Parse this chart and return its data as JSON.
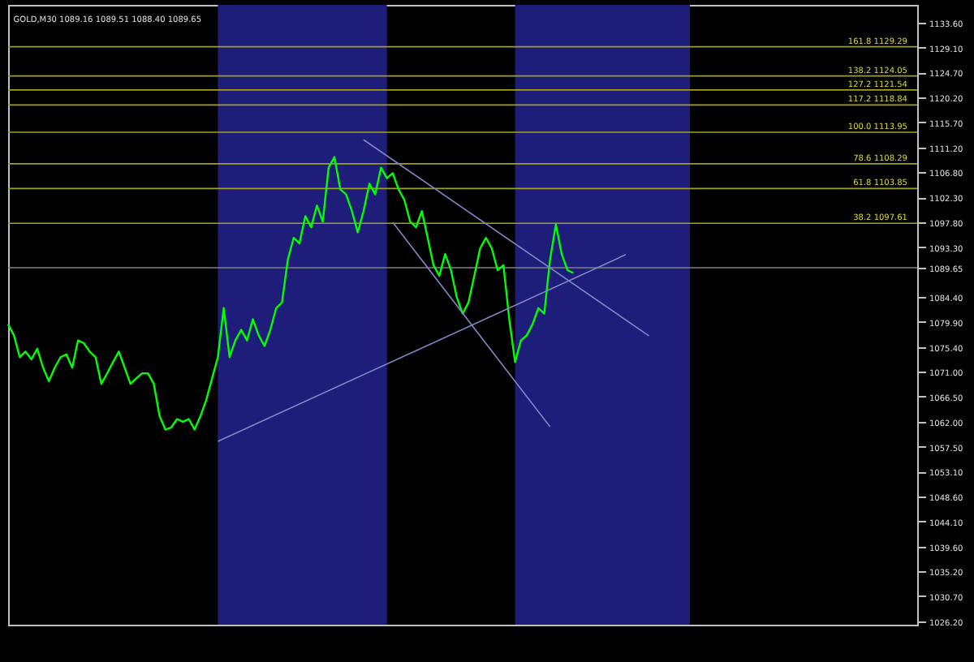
{
  "chart_data": {
    "type": "line",
    "title": "GOLD,M30  1089.16 1089.51 1088.40 1089.65",
    "categories": [
      null,
      null,
      null,
      null,
      null,
      null,
      null,
      null,
      null,
      null,
      null,
      null,
      null,
      null,
      null,
      null,
      null,
      null,
      null,
      null,
      null,
      null,
      null,
      null,
      null,
      null,
      null,
      null,
      null,
      null,
      null,
      null,
      null,
      null,
      null,
      null,
      null,
      null,
      null,
      null,
      null,
      null,
      null,
      null,
      null,
      null,
      null,
      null,
      null,
      null,
      null,
      null,
      null,
      null,
      null,
      null,
      null,
      null,
      null,
      null,
      null,
      null,
      null,
      null,
      null,
      null,
      null,
      null,
      null,
      null,
      null,
      null,
      null,
      null,
      null,
      null,
      null,
      null,
      null,
      null,
      null,
      null,
      null,
      null,
      null,
      null,
      null,
      null,
      null,
      null,
      null,
      null,
      null,
      null,
      null,
      null,
      null,
      null,
      null,
      null,
      null,
      null,
      null,
      null,
      null,
      null,
      null,
      null,
      null,
      null,
      null,
      null,
      null,
      null,
      null,
      null,
      null,
      null,
      null,
      null,
      null,
      null,
      null,
      null,
      null,
      null,
      null,
      null,
      null,
      null,
      null,
      null,
      null,
      null,
      null,
      null,
      null,
      null,
      null,
      null,
      null,
      null,
      null,
      null,
      null,
      null,
      null,
      null,
      null,
      null,
      null,
      null,
      null,
      null,
      null,
      null,
      null
    ],
    "ylim": [
      1025.6,
      1136.8
    ],
    "yticks": [
      {
        "value": 1133.6,
        "label": "1133.60"
      },
      {
        "value": 1129.1,
        "label": "1129.10"
      },
      {
        "value": 1124.7,
        "label": "1124.70"
      },
      {
        "value": 1120.2,
        "label": "1120.20"
      },
      {
        "value": 1115.7,
        "label": "1115.70"
      },
      {
        "value": 1111.2,
        "label": "1111.20"
      },
      {
        "value": 1106.8,
        "label": "1106.80"
      },
      {
        "value": 1102.3,
        "label": "1102.30"
      },
      {
        "value": 1097.8,
        "label": "1097.80"
      },
      {
        "value": 1093.3,
        "label": "1093.30"
      },
      1089.65,
      {
        "value": 1084.4,
        "label": "1084.40"
      },
      {
        "value": 1079.9,
        "label": "1079.90"
      },
      {
        "value": 1075.4,
        "label": "1075.40"
      },
      {
        "value": 1071.0,
        "label": "1071.00"
      },
      {
        "value": 1066.5,
        "label": "1066.50"
      },
      {
        "value": 1062.0,
        "label": "1062.00"
      },
      {
        "value": 1057.5,
        "label": "1057.50"
      },
      {
        "value": 1053.1,
        "label": "1053.10"
      },
      {
        "value": 1048.6,
        "label": "1048.60"
      },
      {
        "value": 1044.1,
        "label": "1044.10"
      },
      {
        "value": 1039.6,
        "label": "1039.60"
      },
      {
        "value": 1035.2,
        "label": "1035.20"
      },
      {
        "value": 1030.7,
        "label": "1030.70"
      },
      {
        "value": 1026.2,
        "label": "1026.20"
      }
    ],
    "tick_labels": "y",
    "grid": false,
    "series": [
      {
        "color": "#00ff00",
        "values": [
          1079.5,
          1077.5,
          1073.6,
          1074.6,
          1073.2,
          1075.1,
          1071.7,
          1069.3,
          1071.7,
          1073.6,
          1074.1,
          1071.7,
          1076.6,
          1076.1,
          1074.6,
          1073.6,
          1068.8,
          1070.7,
          1072.7,
          1074.6,
          1071.7,
          1068.8,
          1069.8,
          1070.7,
          1070.7,
          1068.8,
          1063.0,
          1060.6,
          1061.0,
          1062.5,
          1062.0,
          1062.5,
          1060.6,
          1063.0,
          1065.9,
          1069.8,
          1073.6,
          1082.4,
          1073.6,
          1076.6,
          1078.5,
          1076.6,
          1080.4,
          1077.5,
          1075.6,
          1078.5,
          1082.4,
          1083.4,
          1091.1,
          1095.0,
          1094.0,
          1098.9,
          1096.9,
          1100.8,
          1097.9,
          1107.6,
          1109.5,
          1103.7,
          1102.8,
          1099.8,
          1096.0,
          1099.8,
          1104.7,
          1102.8,
          1107.6,
          1105.7,
          1106.6,
          1103.7,
          1101.8,
          1097.9,
          1096.9,
          1099.8,
          1095.0,
          1090.1,
          1088.2,
          1092.1,
          1089.2,
          1084.3,
          1081.4,
          1083.4,
          1088.2,
          1093.1,
          1095.0,
          1093.1,
          1089.2,
          1090.1,
          1080.4,
          1072.7,
          1076.6,
          1077.5,
          1079.5,
          1082.4,
          1081.4,
          1091.1,
          1097.4,
          1092.1,
          1089.2,
          1088.7,
          null,
          null,
          null,
          null,
          null,
          null,
          null,
          null,
          null,
          null,
          null,
          null,
          null,
          null,
          null,
          null,
          null,
          null,
          null,
          null,
          null,
          null,
          null,
          null,
          null,
          null,
          null,
          null,
          null,
          null,
          null,
          null,
          null,
          null,
          null,
          null,
          null,
          null,
          null,
          null,
          null,
          null,
          null,
          null,
          null,
          null,
          null,
          null,
          null,
          null,
          null,
          null,
          null,
          null,
          null,
          null,
          null,
          null,
          null
        ]
      },
      {
        "color": "#7f86c8",
        "values": [
          null,
          null,
          null,
          null,
          null,
          null,
          null,
          null,
          null,
          null,
          null,
          null,
          null,
          null,
          null,
          null,
          null,
          null,
          null,
          null,
          null,
          null,
          null,
          null,
          null,
          null,
          null,
          null,
          null,
          null,
          null,
          null,
          null,
          null,
          null,
          null,
          1058.5,
          null,
          null,
          null,
          null,
          null,
          null,
          null,
          null,
          null,
          null,
          null,
          null,
          null,
          null,
          null,
          null,
          null,
          null,
          null,
          null,
          null,
          null,
          null,
          null,
          null,
          null,
          null,
          null,
          null,
          null,
          null,
          null,
          null,
          null,
          null,
          null,
          null,
          null,
          null,
          null,
          null,
          null,
          null,
          null,
          null,
          null,
          null,
          null,
          null,
          null,
          null,
          null,
          null,
          null,
          null,
          null,
          null,
          null,
          null,
          null,
          null,
          null,
          null,
          null,
          null,
          null,
          null,
          null,
          null,
          1092.0,
          null,
          null,
          null,
          null,
          null,
          null,
          null,
          null,
          null,
          null,
          null,
          null,
          null,
          null,
          null,
          null,
          null,
          null,
          null,
          null,
          null,
          null,
          null,
          null,
          null,
          null,
          null,
          null,
          null,
          null,
          null,
          null,
          null,
          null,
          null,
          null,
          null,
          null,
          null,
          null,
          null,
          null,
          null,
          null,
          null,
          null,
          null,
          null,
          null,
          null
        ]
      },
      {
        "color": "#7f86c8",
        "values": [
          null,
          null,
          null,
          null,
          null,
          null,
          null,
          null,
          null,
          null,
          null,
          null,
          null,
          null,
          null,
          null,
          null,
          null,
          null,
          null,
          null,
          null,
          null,
          null,
          null,
          null,
          null,
          null,
          null,
          null,
          null,
          null,
          null,
          null,
          null,
          null,
          null,
          null,
          null,
          null,
          null,
          null,
          null,
          null,
          null,
          null,
          null,
          null,
          null,
          null,
          null,
          null,
          null,
          null,
          null,
          null,
          null,
          null,
          null,
          null,
          null,
          1112.6,
          null,
          null,
          null,
          null,
          null,
          null,
          null,
          null,
          null,
          null,
          null,
          null,
          null,
          null,
          null,
          null,
          null,
          null,
          null,
          null,
          null,
          null,
          null,
          null,
          null,
          null,
          null,
          null,
          null,
          null,
          null,
          null,
          null,
          null,
          null,
          null,
          null,
          null,
          null,
          null,
          null,
          null,
          null,
          null,
          null,
          null,
          null,
          null,
          1077.4,
          null,
          null,
          null,
          null,
          null,
          null,
          null,
          null,
          null,
          null,
          null,
          null,
          null,
          null,
          null,
          null,
          null,
          null,
          null,
          null,
          null,
          null,
          null,
          null,
          null,
          null,
          null,
          null,
          null,
          null,
          null,
          null,
          null,
          null,
          null,
          null,
          null,
          null,
          null,
          null,
          null,
          null,
          null,
          null,
          null,
          null
        ]
      },
      {
        "color": "#7f86c8",
        "values": [
          null,
          null,
          null,
          null,
          null,
          null,
          null,
          null,
          null,
          null,
          null,
          null,
          null,
          null,
          null,
          null,
          null,
          null,
          null,
          null,
          null,
          null,
          null,
          null,
          null,
          null,
          null,
          null,
          null,
          null,
          null,
          null,
          null,
          null,
          null,
          null,
          null,
          null,
          null,
          null,
          null,
          null,
          null,
          null,
          null,
          null,
          null,
          null,
          null,
          null,
          null,
          null,
          null,
          null,
          null,
          null,
          null,
          null,
          null,
          null,
          null,
          null,
          null,
          null,
          null,
          null,
          1097.8,
          null,
          null,
          null,
          null,
          null,
          null,
          null,
          null,
          null,
          null,
          null,
          null,
          null,
          null,
          null,
          null,
          null,
          null,
          null,
          null,
          null,
          null,
          null,
          null,
          null,
          null,
          1061.1,
          null,
          null,
          null,
          null,
          null,
          null,
          null,
          null,
          null,
          null,
          null,
          null,
          null,
          null,
          null,
          null,
          null,
          null,
          null,
          null,
          null,
          null,
          null,
          null,
          null,
          null,
          null,
          null,
          null,
          null,
          null,
          null,
          null,
          null,
          null,
          null,
          null,
          null,
          null,
          null,
          null,
          null,
          null,
          null,
          null,
          null,
          null,
          null,
          null,
          null,
          null,
          null,
          null,
          null,
          null,
          null,
          null,
          null,
          null,
          null,
          null,
          null,
          null
        ]
      }
    ],
    "ref_lines": [
      {
        "axis": "y",
        "value": 1089.65,
        "color": "#808080"
      },
      {
        "axis": "y",
        "value": 1129.29,
        "label": "161.8  1129.29",
        "color": "#a0a020"
      },
      {
        "axis": "y",
        "value": 1124.05,
        "label": "138.2  1124.05",
        "color": "#a0a020"
      },
      {
        "axis": "y",
        "value": 1121.54,
        "label": "127.2  1121.54",
        "color": "#a0a020"
      },
      {
        "axis": "y",
        "value": 1118.84,
        "label": "117.2  1118.84",
        "color": "#a0a020"
      },
      {
        "axis": "y",
        "value": 1113.95,
        "label": "100.0  1113.95",
        "color": "#a0a020"
      },
      {
        "axis": "y",
        "value": 1108.29,
        "label": "78.6  1108.29",
        "color": "#a0a020"
      },
      {
        "axis": "y",
        "value": 1103.85,
        "label": "61.8  1103.85",
        "color": "#a0a020"
      },
      {
        "axis": "y",
        "value": 1097.61,
        "label": "38.2  1097.61",
        "color": "#a0a020"
      }
    ]
  }
}
